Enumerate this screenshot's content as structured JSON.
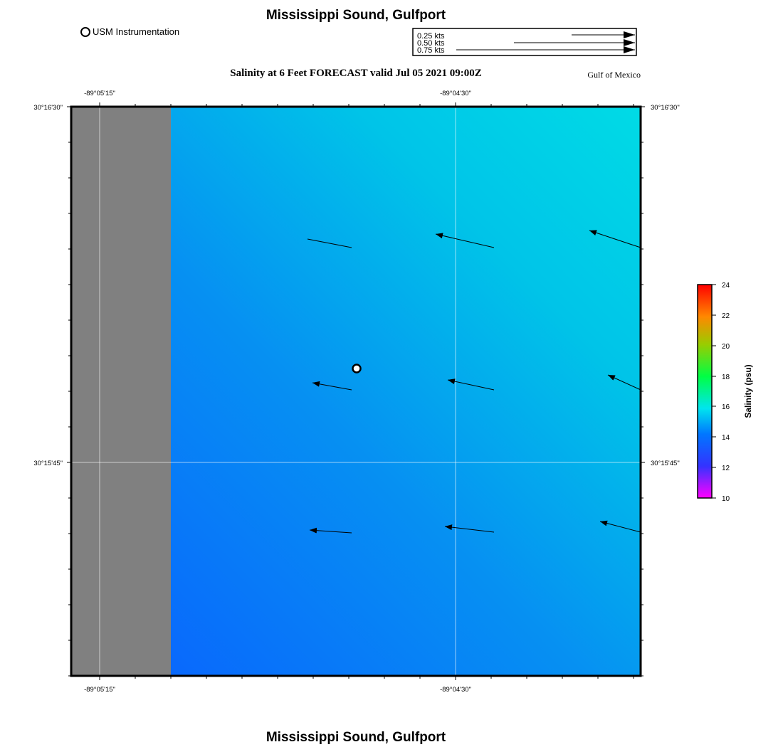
{
  "header": {
    "title": "Mississippi Sound, Gulfport",
    "station_legend": "USM Instrumentation",
    "subtitle": "Salinity at 6 Feet FORECAST valid Jul 05 2021 09:00Z",
    "region": "Gulf of Mexico"
  },
  "vector_scale": {
    "items": [
      {
        "label": "0.25 kts",
        "speed": 0.25
      },
      {
        "label": "0.50 kts",
        "speed": 0.5
      },
      {
        "label": "0.75 kts",
        "speed": 0.75
      }
    ]
  },
  "axes": {
    "x_ticks_top": [
      "-89°05'15\"",
      "-89°04'30\""
    ],
    "x_ticks_bottom": [
      "-89°05'15\"",
      "-89°04'30\""
    ],
    "y_ticks_left": [
      "30°16'30\"",
      "30°15'45\""
    ],
    "y_ticks_right": [
      "30°16'30\"",
      "30°15'45\""
    ]
  },
  "colorbar": {
    "label": "Salinity (psu)",
    "ticks": [
      "24",
      "22",
      "20",
      "18",
      "16",
      "14",
      "12",
      "10"
    ],
    "min": 10,
    "max": 24
  },
  "footer": {
    "title": "Mississippi Sound, Gulfport"
  },
  "colors": {
    "land": "#808080",
    "salinity_low": "#0a5fff",
    "salinity_high": "#00d8e6"
  }
}
